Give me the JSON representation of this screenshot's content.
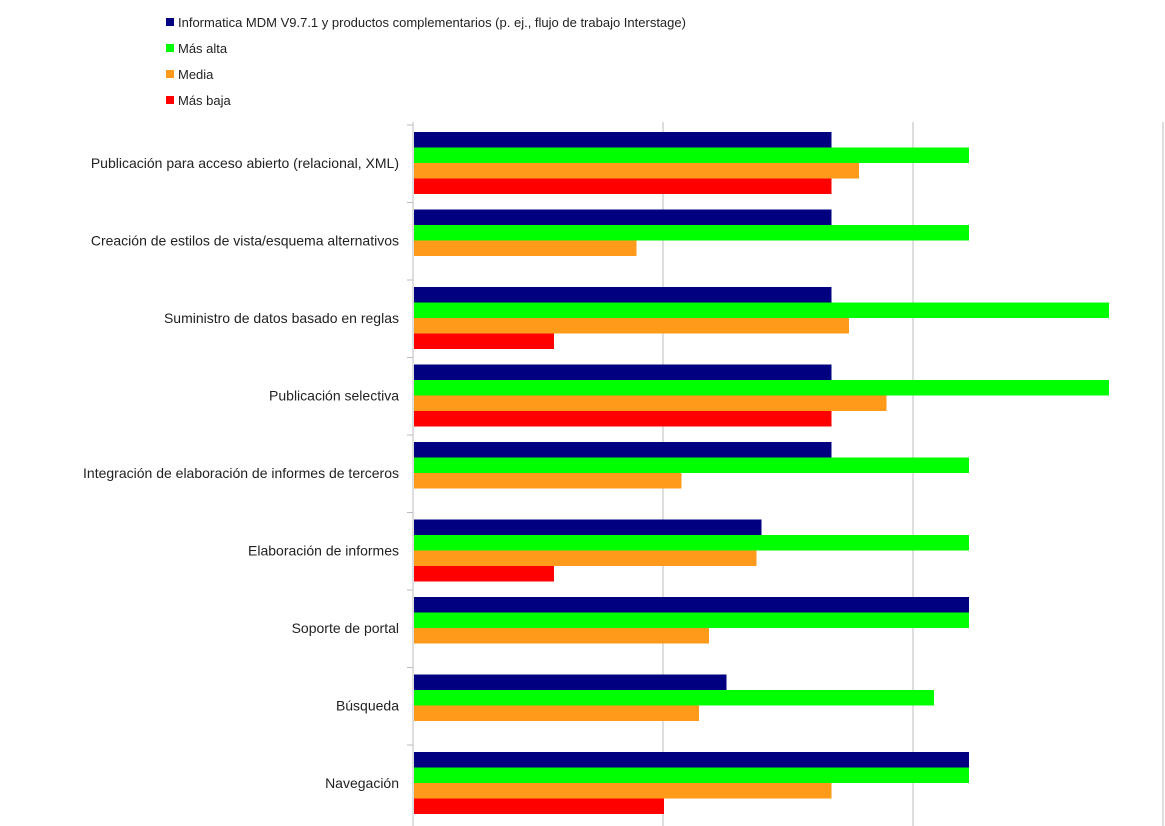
{
  "chart_data": {
    "type": "bar",
    "orientation": "horizontal",
    "title": "",
    "xlabel": "",
    "ylabel": "",
    "xlim": [
      0,
      3
    ],
    "grid": true,
    "legend_position": "top-left",
    "categories": [
      "Publicación para acceso abierto (relacional, XML)",
      "Creación de estilos de vista/esquema alternativos",
      "Suministro de datos basado en reglas",
      "Publicación selectiva",
      "Integración de elaboración de informes de terceros",
      "Elaboración de informes",
      "Soporte de portal",
      "Búsqueda",
      "Navegación"
    ],
    "series": [
      {
        "name": "Informatica MDM V9.7.1 y productos complementarios (p. ej., flujo de trabajo Interstage)",
        "color": "#000080",
        "values": [
          1.67,
          1.67,
          1.67,
          1.67,
          1.67,
          1.39,
          2.22,
          1.25,
          2.22
        ]
      },
      {
        "name": "Más alta",
        "color": "#00ff00",
        "values": [
          2.22,
          2.22,
          2.78,
          2.78,
          2.22,
          2.22,
          2.22,
          2.08,
          2.22
        ]
      },
      {
        "name": "Media",
        "color": "#ff9a1a",
        "values": [
          1.78,
          0.89,
          1.74,
          1.89,
          1.07,
          1.37,
          1.18,
          1.14,
          1.67
        ]
      },
      {
        "name": "Más baja",
        "color": "#ff0000",
        "values": [
          1.67,
          0,
          0.56,
          1.67,
          0,
          0.56,
          0,
          0,
          1.0
        ]
      }
    ]
  }
}
